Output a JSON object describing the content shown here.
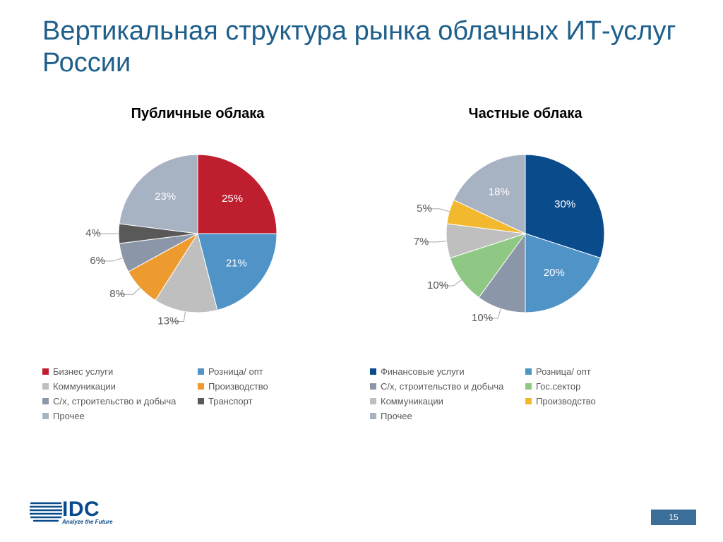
{
  "title": "Вертикальная структура рынка облачных ИТ-услуг России",
  "page_number": "15",
  "logo": {
    "brand": "IDC",
    "tagline": "Analyze the Future",
    "stripe_color": "#0a4b8c"
  },
  "charts": [
    {
      "title": "Публичные облака",
      "type": "pie",
      "radius": 112,
      "start_angle_deg": 0,
      "label_fontsize": 15,
      "label_color_inside": "#ffffff",
      "label_color_outside": "#595959",
      "leader_color": "#a6a6a6",
      "slices": [
        {
          "label": "Бизнес услуги",
          "value": 25,
          "color": "#bf1e2e",
          "text": "25%",
          "label_placement": "inside"
        },
        {
          "label": "Розница/ опт",
          "value": 21,
          "color": "#4f93c7",
          "text": "21%",
          "label_placement": "inside"
        },
        {
          "label": "Коммуникации",
          "value": 13,
          "color": "#bfbfbf",
          "text": "13%",
          "label_placement": "outside"
        },
        {
          "label": "Производство",
          "value": 8,
          "color": "#ed9a2e",
          "text": "8%",
          "label_placement": "outside"
        },
        {
          "label": "С/х, строительство и добыча",
          "value": 6,
          "color": "#8b97a8",
          "text": "6%",
          "label_placement": "outside"
        },
        {
          "label": "Транспорт",
          "value": 4,
          "color": "#595959",
          "text": "4%",
          "label_placement": "outside"
        },
        {
          "label": "Прочее",
          "value": 23,
          "color": "#a7b2c3",
          "text": "23%",
          "label_placement": "inside"
        }
      ]
    },
    {
      "title": "Частные облака",
      "type": "pie",
      "radius": 112,
      "start_angle_deg": 0,
      "label_fontsize": 15,
      "label_color_inside": "#ffffff",
      "label_color_outside": "#595959",
      "leader_color": "#a6a6a6",
      "slices": [
        {
          "label": "Финансовые услуги",
          "value": 30,
          "color": "#0a4b8c",
          "text": "30%",
          "label_placement": "inside"
        },
        {
          "label": "Розница/ опт",
          "value": 20,
          "color": "#4f93c7",
          "text": "20%",
          "label_placement": "inside"
        },
        {
          "label": "С/х, строительство и добыча",
          "value": 10,
          "color": "#8b97a8",
          "text": "10%",
          "label_placement": "outside"
        },
        {
          "label": "Гос.сектор",
          "value": 10,
          "color": "#8fc784",
          "text": "10%",
          "label_placement": "outside"
        },
        {
          "label": "Коммуникации",
          "value": 7,
          "color": "#bfbfbf",
          "text": "7%",
          "label_placement": "outside"
        },
        {
          "label": "Производство",
          "value": 5,
          "color": "#f2b92e",
          "text": "5%",
          "label_placement": "outside"
        },
        {
          "label": "Прочее",
          "value": 18,
          "color": "#a7b2c3",
          "text": "18%",
          "label_placement": "inside"
        }
      ]
    }
  ],
  "legend_fontsize": 13,
  "legend_color": "#595959",
  "background_color": "#ffffff",
  "title_color": "#1f5f8b",
  "title_fontsize": 38,
  "chart_title_fontsize": 20,
  "page_number_bg": "#3b6e99"
}
